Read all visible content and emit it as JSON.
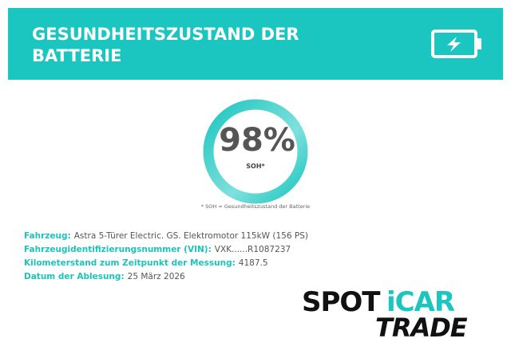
{
  "header": {
    "title_line1": "GESUNDHEITSZUSTAND DER",
    "title_line2": "BATTERIE"
  },
  "gauge": {
    "value": "98%",
    "caption": "SOH*",
    "footnote": "* SOH = Gesundheitszustand der Batterie"
  },
  "details": [
    {
      "label": "Fahrzeug:",
      "value": "Astra 5-Türer Electric. GS. Elektromotor 115kW (156 PS)"
    },
    {
      "label": "Fahrzeugidentifizierungsnummer (VIN):",
      "value": "VXK......R1087237"
    },
    {
      "label": "Kilometerstand zum Zeitpunkt der Messung:",
      "value": "4187.5"
    },
    {
      "label": "Datum der Ablesung:",
      "value": "25 März 2026"
    }
  ],
  "logo": {
    "part1": "SPOT",
    "part2": "iCAR",
    "line2": "TRADE"
  }
}
